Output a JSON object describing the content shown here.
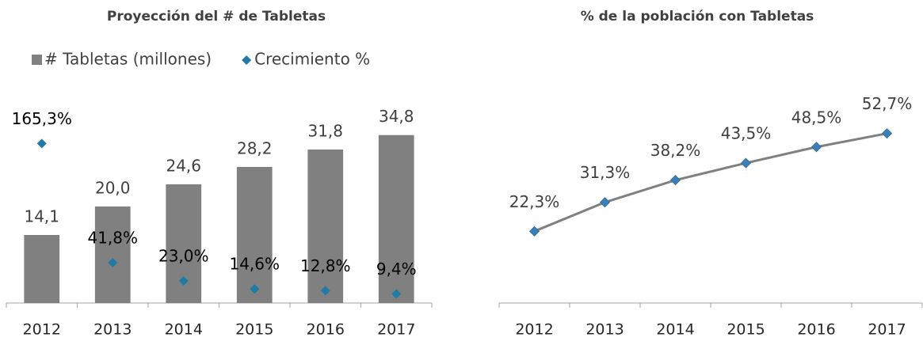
{
  "chart_data": [
    {
      "type": "combo",
      "title": "Proyección del # de Tabletas",
      "categories": [
        "2012",
        "2013",
        "2014",
        "2015",
        "2016",
        "2017"
      ],
      "series": [
        {
          "name": "# Tabletas (millones)",
          "type": "bar",
          "color": "#808080",
          "values": [
            14.1,
            20.0,
            24.6,
            28.2,
            31.8,
            34.8
          ],
          "value_labels": [
            "14,1",
            "20,0",
            "24,6",
            "28,2",
            "31,8",
            "34,8"
          ]
        },
        {
          "name": "Crecimiento %",
          "type": "scatter",
          "axis": "y2",
          "color": "#1f7ba6",
          "values": [
            165.3,
            41.8,
            23.0,
            14.6,
            12.8,
            9.4
          ],
          "value_labels": [
            "165,3%",
            "41,8%",
            "23,0%",
            "14,6%",
            "12,8%",
            "9,4%"
          ]
        }
      ],
      "ylim": [
        0,
        40
      ],
      "y2lim": [
        0,
        200
      ],
      "legend": "top"
    },
    {
      "type": "line",
      "title": "% de la población con Tabletas",
      "categories": [
        "2012",
        "2013",
        "2014",
        "2015",
        "2016",
        "2017"
      ],
      "values": [
        22.3,
        31.3,
        38.2,
        43.5,
        48.5,
        52.7
      ],
      "value_labels": [
        "22,3%",
        "31,3%",
        "38,2%",
        "43,5%",
        "48,5%",
        "52,7%"
      ],
      "color": "#808080",
      "marker_color": "#3b7fb6",
      "ylim": [
        0,
        60
      ]
    }
  ]
}
